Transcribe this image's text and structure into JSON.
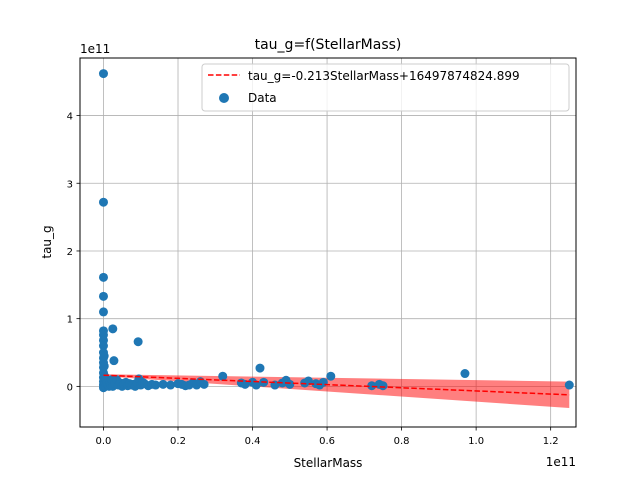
{
  "chart_data": {
    "type": "scatter",
    "title": "tau_g=f(StellarMass)",
    "xlabel": "StellarMass",
    "ylabel": "tau_g",
    "x_offset_text": "1e11",
    "y_offset_text": "1e11",
    "xlim": [
      -0.063,
      1.268
    ],
    "ylim": [
      -0.6,
      4.85
    ],
    "xticks": [
      0.0,
      0.2,
      0.4,
      0.6,
      0.8,
      1.0,
      1.2
    ],
    "xtick_labels": [
      "0.0",
      "0.2",
      "0.4",
      "0.6",
      "0.8",
      "1.0",
      "1.2"
    ],
    "yticks": [
      0,
      1,
      2,
      3,
      4
    ],
    "ytick_labels": [
      "0",
      "1",
      "2",
      "3",
      "4"
    ],
    "grid": true,
    "legend_placement": "top-right",
    "colors": {
      "points": "#1f77b4",
      "fit_line": "#ff0000",
      "band": "#ff0000"
    },
    "fit": {
      "label": "tau_g=-0.213StellarMass+16497874824.899",
      "slope": -0.213,
      "intercept": 16497874824.899,
      "x_range": [
        0.0,
        1.25
      ],
      "band": {
        "upper": [
          [
            0.0,
            0.18
          ],
          [
            1.25,
            0.07
          ]
        ],
        "lower": [
          [
            0.0,
            0.15
          ],
          [
            1.25,
            -0.32
          ]
        ]
      }
    },
    "series": [
      {
        "name": "Data",
        "points": [
          [
            0.0,
            4.62
          ],
          [
            0.0,
            2.72
          ],
          [
            0.0,
            1.61
          ],
          [
            0.0,
            1.33
          ],
          [
            0.0,
            1.1
          ],
          [
            0.0,
            0.82
          ],
          [
            0.0,
            0.76
          ],
          [
            0.0,
            0.68
          ],
          [
            0.0,
            0.6
          ],
          [
            0.0,
            0.5
          ],
          [
            0.0,
            0.42
          ],
          [
            0.0,
            0.35
          ],
          [
            0.0,
            0.28
          ],
          [
            0.0,
            0.2
          ],
          [
            0.0,
            0.13
          ],
          [
            0.0,
            0.07
          ],
          [
            0.0,
            0.02
          ],
          [
            0.0,
            -0.02
          ],
          [
            0.002,
            0.45
          ],
          [
            0.002,
            0.3
          ],
          [
            0.003,
            0.15
          ],
          [
            0.003,
            0.05
          ],
          [
            0.005,
            0.0
          ],
          [
            0.006,
            0.1
          ],
          [
            0.008,
            0.03
          ],
          [
            0.01,
            0.05
          ],
          [
            0.012,
            0.02
          ],
          [
            0.015,
            0.0
          ],
          [
            0.018,
            0.05
          ],
          [
            0.02,
            0.02
          ],
          [
            0.022,
            0.1
          ],
          [
            0.025,
            0.85
          ],
          [
            0.025,
            0.0
          ],
          [
            0.028,
            0.38
          ],
          [
            0.03,
            0.04
          ],
          [
            0.035,
            0.1
          ],
          [
            0.04,
            0.02
          ],
          [
            0.045,
            0.05
          ],
          [
            0.05,
            0.0
          ],
          [
            0.055,
            0.03
          ],
          [
            0.06,
            0.06
          ],
          [
            0.065,
            0.01
          ],
          [
            0.07,
            0.04
          ],
          [
            0.075,
            0.02
          ],
          [
            0.08,
            0.03
          ],
          [
            0.085,
            0.0
          ],
          [
            0.09,
            0.05
          ],
          [
            0.095,
            0.11
          ],
          [
            0.093,
            0.66
          ],
          [
            0.1,
            0.02
          ],
          [
            0.105,
            0.06
          ],
          [
            0.11,
            0.04
          ],
          [
            0.12,
            0.01
          ],
          [
            0.13,
            0.03
          ],
          [
            0.14,
            0.02
          ],
          [
            0.16,
            0.03
          ],
          [
            0.18,
            0.02
          ],
          [
            0.2,
            0.04
          ],
          [
            0.21,
            0.03
          ],
          [
            0.22,
            0.01
          ],
          [
            0.23,
            0.02
          ],
          [
            0.24,
            0.05
          ],
          [
            0.25,
            0.02
          ],
          [
            0.26,
            0.07
          ],
          [
            0.27,
            0.03
          ],
          [
            0.32,
            0.15
          ],
          [
            0.37,
            0.05
          ],
          [
            0.38,
            0.03
          ],
          [
            0.4,
            0.06
          ],
          [
            0.41,
            0.02
          ],
          [
            0.42,
            0.27
          ],
          [
            0.43,
            0.06
          ],
          [
            0.46,
            0.02
          ],
          [
            0.48,
            0.05
          ],
          [
            0.49,
            0.09
          ],
          [
            0.5,
            0.03
          ],
          [
            0.54,
            0.05
          ],
          [
            0.55,
            0.08
          ],
          [
            0.57,
            0.04
          ],
          [
            0.58,
            0.02
          ],
          [
            0.59,
            0.06
          ],
          [
            0.61,
            0.15
          ],
          [
            0.72,
            0.01
          ],
          [
            0.74,
            0.03
          ],
          [
            0.75,
            0.01
          ],
          [
            0.97,
            0.19
          ],
          [
            1.25,
            0.02
          ]
        ]
      }
    ]
  }
}
